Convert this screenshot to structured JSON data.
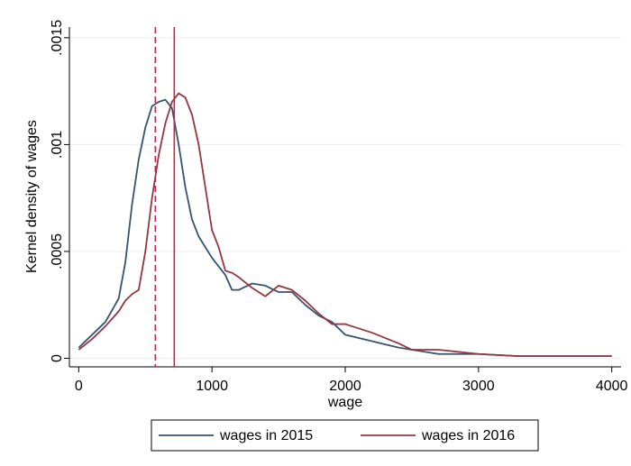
{
  "chart_data": {
    "type": "line",
    "y_axis_label": "Kernel density of wages",
    "x_axis_label": "wage",
    "x": [
      0,
      100,
      200,
      300,
      350,
      400,
      450,
      500,
      550,
      600,
      650,
      700,
      750,
      800,
      850,
      900,
      950,
      1000,
      1050,
      1100,
      1150,
      1200,
      1300,
      1400,
      1500,
      1600,
      1700,
      1800,
      1900,
      2000,
      2200,
      2400,
      2500,
      2700,
      3000,
      3300,
      3500,
      4000
    ],
    "series": [
      {
        "name": "wages in 2015",
        "color": "#34536f",
        "values": [
          5e-05,
          0.00011,
          0.00017,
          0.00028,
          0.00045,
          0.00072,
          0.00093,
          0.00108,
          0.00118,
          0.0012,
          0.00121,
          0.00117,
          0.001,
          0.0008,
          0.00065,
          0.00057,
          0.00052,
          0.00047,
          0.00043,
          0.00039,
          0.00032,
          0.00032,
          0.00035,
          0.00034,
          0.00031,
          0.00031,
          0.00025,
          0.0002,
          0.00017,
          0.00011,
          8e-05,
          5e-05,
          4e-05,
          2e-05,
          2e-05,
          1e-05,
          1e-05,
          1e-05
        ]
      },
      {
        "name": "wages in 2016",
        "color": "#93373f",
        "values": [
          4e-05,
          9e-05,
          0.00015,
          0.00022,
          0.00027,
          0.0003,
          0.00032,
          0.0005,
          0.00075,
          0.00095,
          0.0011,
          0.0012,
          0.00124,
          0.00122,
          0.00114,
          0.001,
          0.0008,
          0.0006,
          0.00052,
          0.00041,
          0.0004,
          0.00038,
          0.00033,
          0.00029,
          0.00034,
          0.00032,
          0.00027,
          0.00021,
          0.00016,
          0.00016,
          0.00012,
          7e-05,
          4e-05,
          4e-05,
          2e-05,
          1e-05,
          1e-05,
          1e-05
        ]
      }
    ],
    "reference_lines": [
      {
        "value": 575,
        "style": "dashed",
        "color": "#c0264a"
      },
      {
        "value": 717,
        "style": "solid",
        "color": "#c0264a"
      }
    ],
    "xlim": [
      -70,
      4070
    ],
    "xticks": [
      0,
      1000,
      2000,
      3000,
      4000
    ],
    "ylim": [
      -4e-05,
      0.00155
    ],
    "yticks": [
      0,
      {
        "value": 0.0005,
        "label": ".0005"
      },
      {
        "value": 0.001,
        "label": ".001"
      },
      {
        "value": 0.0015,
        "label": ".0015"
      }
    ],
    "grid": true,
    "legend": "bottom"
  }
}
